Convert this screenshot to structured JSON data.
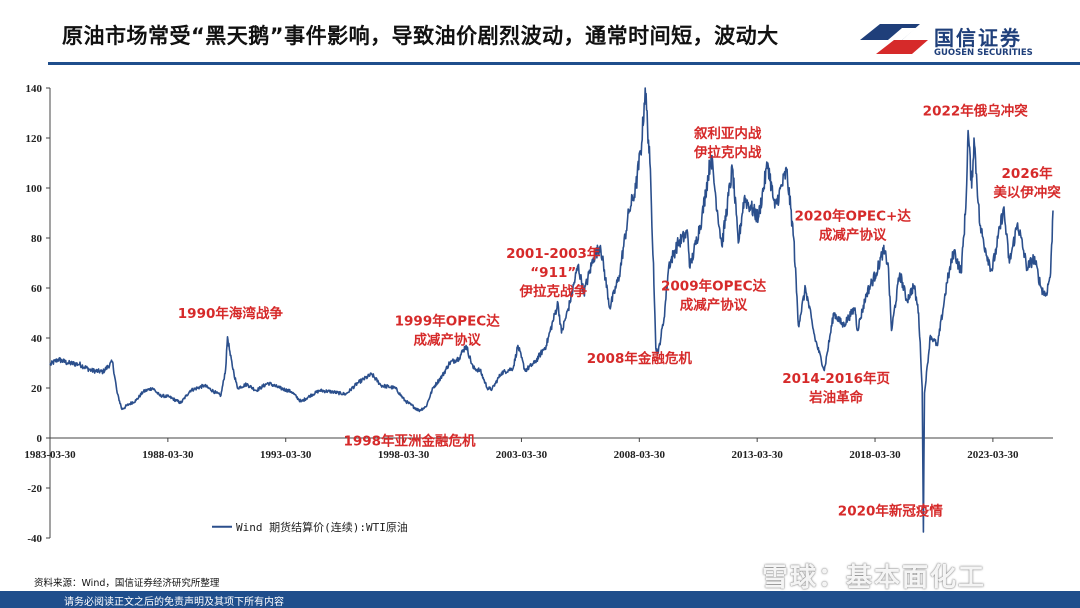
{
  "header": {
    "title": "原油市场常受“黑天鹅”事件影响，导致油价剧烈波动，通常时间短，波动大",
    "logo_cn": "国信证券",
    "logo_en": "GUOSEN SECURITIES",
    "rule_color": "#1f4e8c"
  },
  "source": "资料来源：Wind，国信证券经济研究所整理",
  "footer": {
    "text": "请务必阅读正文之后的免责声明及其项下所有内容",
    "color": "#1f4e8c"
  },
  "watermark": "雪球：基本面化工",
  "chart_data": {
    "type": "line",
    "series": [
      {
        "name": "Wind 期货结算价(连续):WTI原油",
        "color": "#2b4f8c"
      }
    ],
    "legend_position": "bottom-left",
    "ylim": [
      -40,
      140
    ],
    "yticks": [
      140,
      120,
      100,
      80,
      60,
      40,
      20,
      0,
      -20,
      -40
    ],
    "xlim": [
      1983.25,
      2025.8
    ],
    "xticks": [
      "1983-03-30",
      "1988-03-30",
      "1993-03-30",
      "1998-03-30",
      "2003-03-30",
      "2008-03-30",
      "2013-03-30",
      "2018-03-30",
      "2023-03-30"
    ],
    "grid": false,
    "points": [
      [
        1983.25,
        29.3
      ],
      [
        1983.6,
        31.5
      ],
      [
        1984.0,
        30.0
      ],
      [
        1984.5,
        29.5
      ],
      [
        1985.0,
        27.0
      ],
      [
        1985.5,
        26.5
      ],
      [
        1985.9,
        30.5
      ],
      [
        1986.1,
        18.0
      ],
      [
        1986.3,
        11.5
      ],
      [
        1986.6,
        13.5
      ],
      [
        1986.9,
        15.0
      ],
      [
        1987.2,
        18.5
      ],
      [
        1987.6,
        20.0
      ],
      [
        1987.9,
        17.0
      ],
      [
        1988.3,
        16.5
      ],
      [
        1988.8,
        14.0
      ],
      [
        1989.2,
        19.0
      ],
      [
        1989.8,
        21.0
      ],
      [
        1990.3,
        18.0
      ],
      [
        1990.5,
        17.0
      ],
      [
        1990.7,
        27.5
      ],
      [
        1990.78,
        40.5
      ],
      [
        1990.9,
        33.0
      ],
      [
        1991.05,
        26.0
      ],
      [
        1991.2,
        20.0
      ],
      [
        1991.6,
        21.5
      ],
      [
        1992.0,
        19.0
      ],
      [
        1992.5,
        22.0
      ],
      [
        1993.0,
        20.0
      ],
      [
        1993.5,
        18.5
      ],
      [
        1993.9,
        14.5
      ],
      [
        1994.3,
        17.0
      ],
      [
        1994.7,
        19.0
      ],
      [
        1995.2,
        18.5
      ],
      [
        1995.8,
        17.5
      ],
      [
        1996.3,
        22.0
      ],
      [
        1996.9,
        25.5
      ],
      [
        1997.3,
        21.0
      ],
      [
        1997.9,
        20.0
      ],
      [
        1998.3,
        15.0
      ],
      [
        1998.9,
        11.0
      ],
      [
        1999.2,
        12.5
      ],
      [
        1999.5,
        20.0
      ],
      [
        1999.9,
        25.0
      ],
      [
        2000.2,
        30.0
      ],
      [
        2000.6,
        32.0
      ],
      [
        2000.9,
        37.0
      ],
      [
        2001.2,
        28.0
      ],
      [
        2001.5,
        27.0
      ],
      [
        2001.8,
        20.0
      ],
      [
        2002.0,
        19.5
      ],
      [
        2002.4,
        26.0
      ],
      [
        2002.9,
        28.0
      ],
      [
        2003.1,
        37.0
      ],
      [
        2003.4,
        27.0
      ],
      [
        2003.8,
        30.0
      ],
      [
        2004.3,
        37.0
      ],
      [
        2004.8,
        54.0
      ],
      [
        2004.95,
        42.0
      ],
      [
        2005.3,
        54.0
      ],
      [
        2005.65,
        69.0
      ],
      [
        2005.9,
        58.0
      ],
      [
        2006.3,
        72.0
      ],
      [
        2006.6,
        77.0
      ],
      [
        2007.0,
        52.0
      ],
      [
        2007.4,
        65.0
      ],
      [
        2007.8,
        90.0
      ],
      [
        2008.1,
        100.0
      ],
      [
        2008.35,
        118.0
      ],
      [
        2008.5,
        140.0
      ],
      [
        2008.7,
        110.0
      ],
      [
        2008.85,
        70.0
      ],
      [
        2008.95,
        36.0
      ],
      [
        2009.05,
        34.0
      ],
      [
        2009.3,
        48.0
      ],
      [
        2009.5,
        69.0
      ],
      [
        2009.9,
        78.0
      ],
      [
        2010.3,
        82.0
      ],
      [
        2010.4,
        68.0
      ],
      [
        2010.9,
        88.0
      ],
      [
        2011.3,
        113.0
      ],
      [
        2011.5,
        96.0
      ],
      [
        2011.75,
        77.0
      ],
      [
        2012.2,
        108.0
      ],
      [
        2012.45,
        78.0
      ],
      [
        2012.7,
        96.0
      ],
      [
        2013.0,
        92.0
      ],
      [
        2013.3,
        88.0
      ],
      [
        2013.7,
        110.0
      ],
      [
        2014.0,
        92.0
      ],
      [
        2014.5,
        107.0
      ],
      [
        2014.8,
        80.0
      ],
      [
        2015.0,
        45.0
      ],
      [
        2015.3,
        60.0
      ],
      [
        2015.7,
        40.0
      ],
      [
        2016.1,
        27.0
      ],
      [
        2016.5,
        50.0
      ],
      [
        2016.9,
        45.0
      ],
      [
        2017.4,
        52.0
      ],
      [
        2017.5,
        43.0
      ],
      [
        2017.9,
        58.0
      ],
      [
        2018.3,
        66.0
      ],
      [
        2018.6,
        75.0
      ],
      [
        2018.8,
        70.0
      ],
      [
        2018.95,
        43.0
      ],
      [
        2019.3,
        66.0
      ],
      [
        2019.6,
        55.0
      ],
      [
        2019.9,
        61.0
      ],
      [
        2020.1,
        50.0
      ],
      [
        2020.25,
        20.0
      ],
      [
        2020.3,
        -37.6
      ],
      [
        2020.35,
        18.0
      ],
      [
        2020.6,
        41.0
      ],
      [
        2020.9,
        37.0
      ],
      [
        2021.3,
        62.0
      ],
      [
        2021.6,
        75.0
      ],
      [
        2021.9,
        66.0
      ],
      [
        2022.1,
        92.0
      ],
      [
        2022.2,
        123.0
      ],
      [
        2022.35,
        100.0
      ],
      [
        2022.45,
        120.0
      ],
      [
        2022.7,
        85.0
      ],
      [
        2022.95,
        75.0
      ],
      [
        2023.2,
        67.0
      ],
      [
        2023.4,
        76.0
      ],
      [
        2023.7,
        92.0
      ],
      [
        2023.95,
        70.0
      ],
      [
        2024.3,
        86.0
      ],
      [
        2024.7,
        68.0
      ],
      [
        2025.0,
        72.0
      ],
      [
        2025.3,
        60.0
      ],
      [
        2025.5,
        57.0
      ],
      [
        2025.7,
        66.0
      ],
      [
        2025.8,
        91.0
      ]
    ],
    "annotations": [
      {
        "lines": [
          "1990年海湾战争"
        ],
        "year": 1990.9,
        "value": 48
      },
      {
        "lines": [
          "1999年OPEC达",
          "成减产协议"
        ],
        "year": 2000.1,
        "value": 45
      },
      {
        "lines": [
          "1998年亚洲金融危机"
        ],
        "year": 1998.5,
        "value": -3
      },
      {
        "lines": [
          "2001-2003年",
          "“911”",
          "伊拉克战争"
        ],
        "year": 2004.6,
        "value": 72
      },
      {
        "lines": [
          "2008年金融危机"
        ],
        "year": 2008.25,
        "value": 30
      },
      {
        "lines": [
          "2009年OPEC达",
          "成减产协议"
        ],
        "year": 2011.4,
        "value": 59
      },
      {
        "lines": [
          "叙利亚内战",
          "伊拉克内战"
        ],
        "year": 2012.0,
        "value": 120
      },
      {
        "lines": [
          "2014-2016年页",
          "岩油革命"
        ],
        "year": 2016.6,
        "value": 22
      },
      {
        "lines": [
          "2020年OPEC+达",
          "成减产协议"
        ],
        "year": 2017.3,
        "value": 87
      },
      {
        "lines": [
          "2022年俄乌冲突"
        ],
        "year": 2022.5,
        "value": 129
      },
      {
        "lines": [
          "2026年",
          "美以伊冲突"
        ],
        "year": 2024.7,
        "value": 104
      },
      {
        "lines": [
          "2020年新冠疫情"
        ],
        "year": 2018.9,
        "value": -31
      }
    ]
  }
}
